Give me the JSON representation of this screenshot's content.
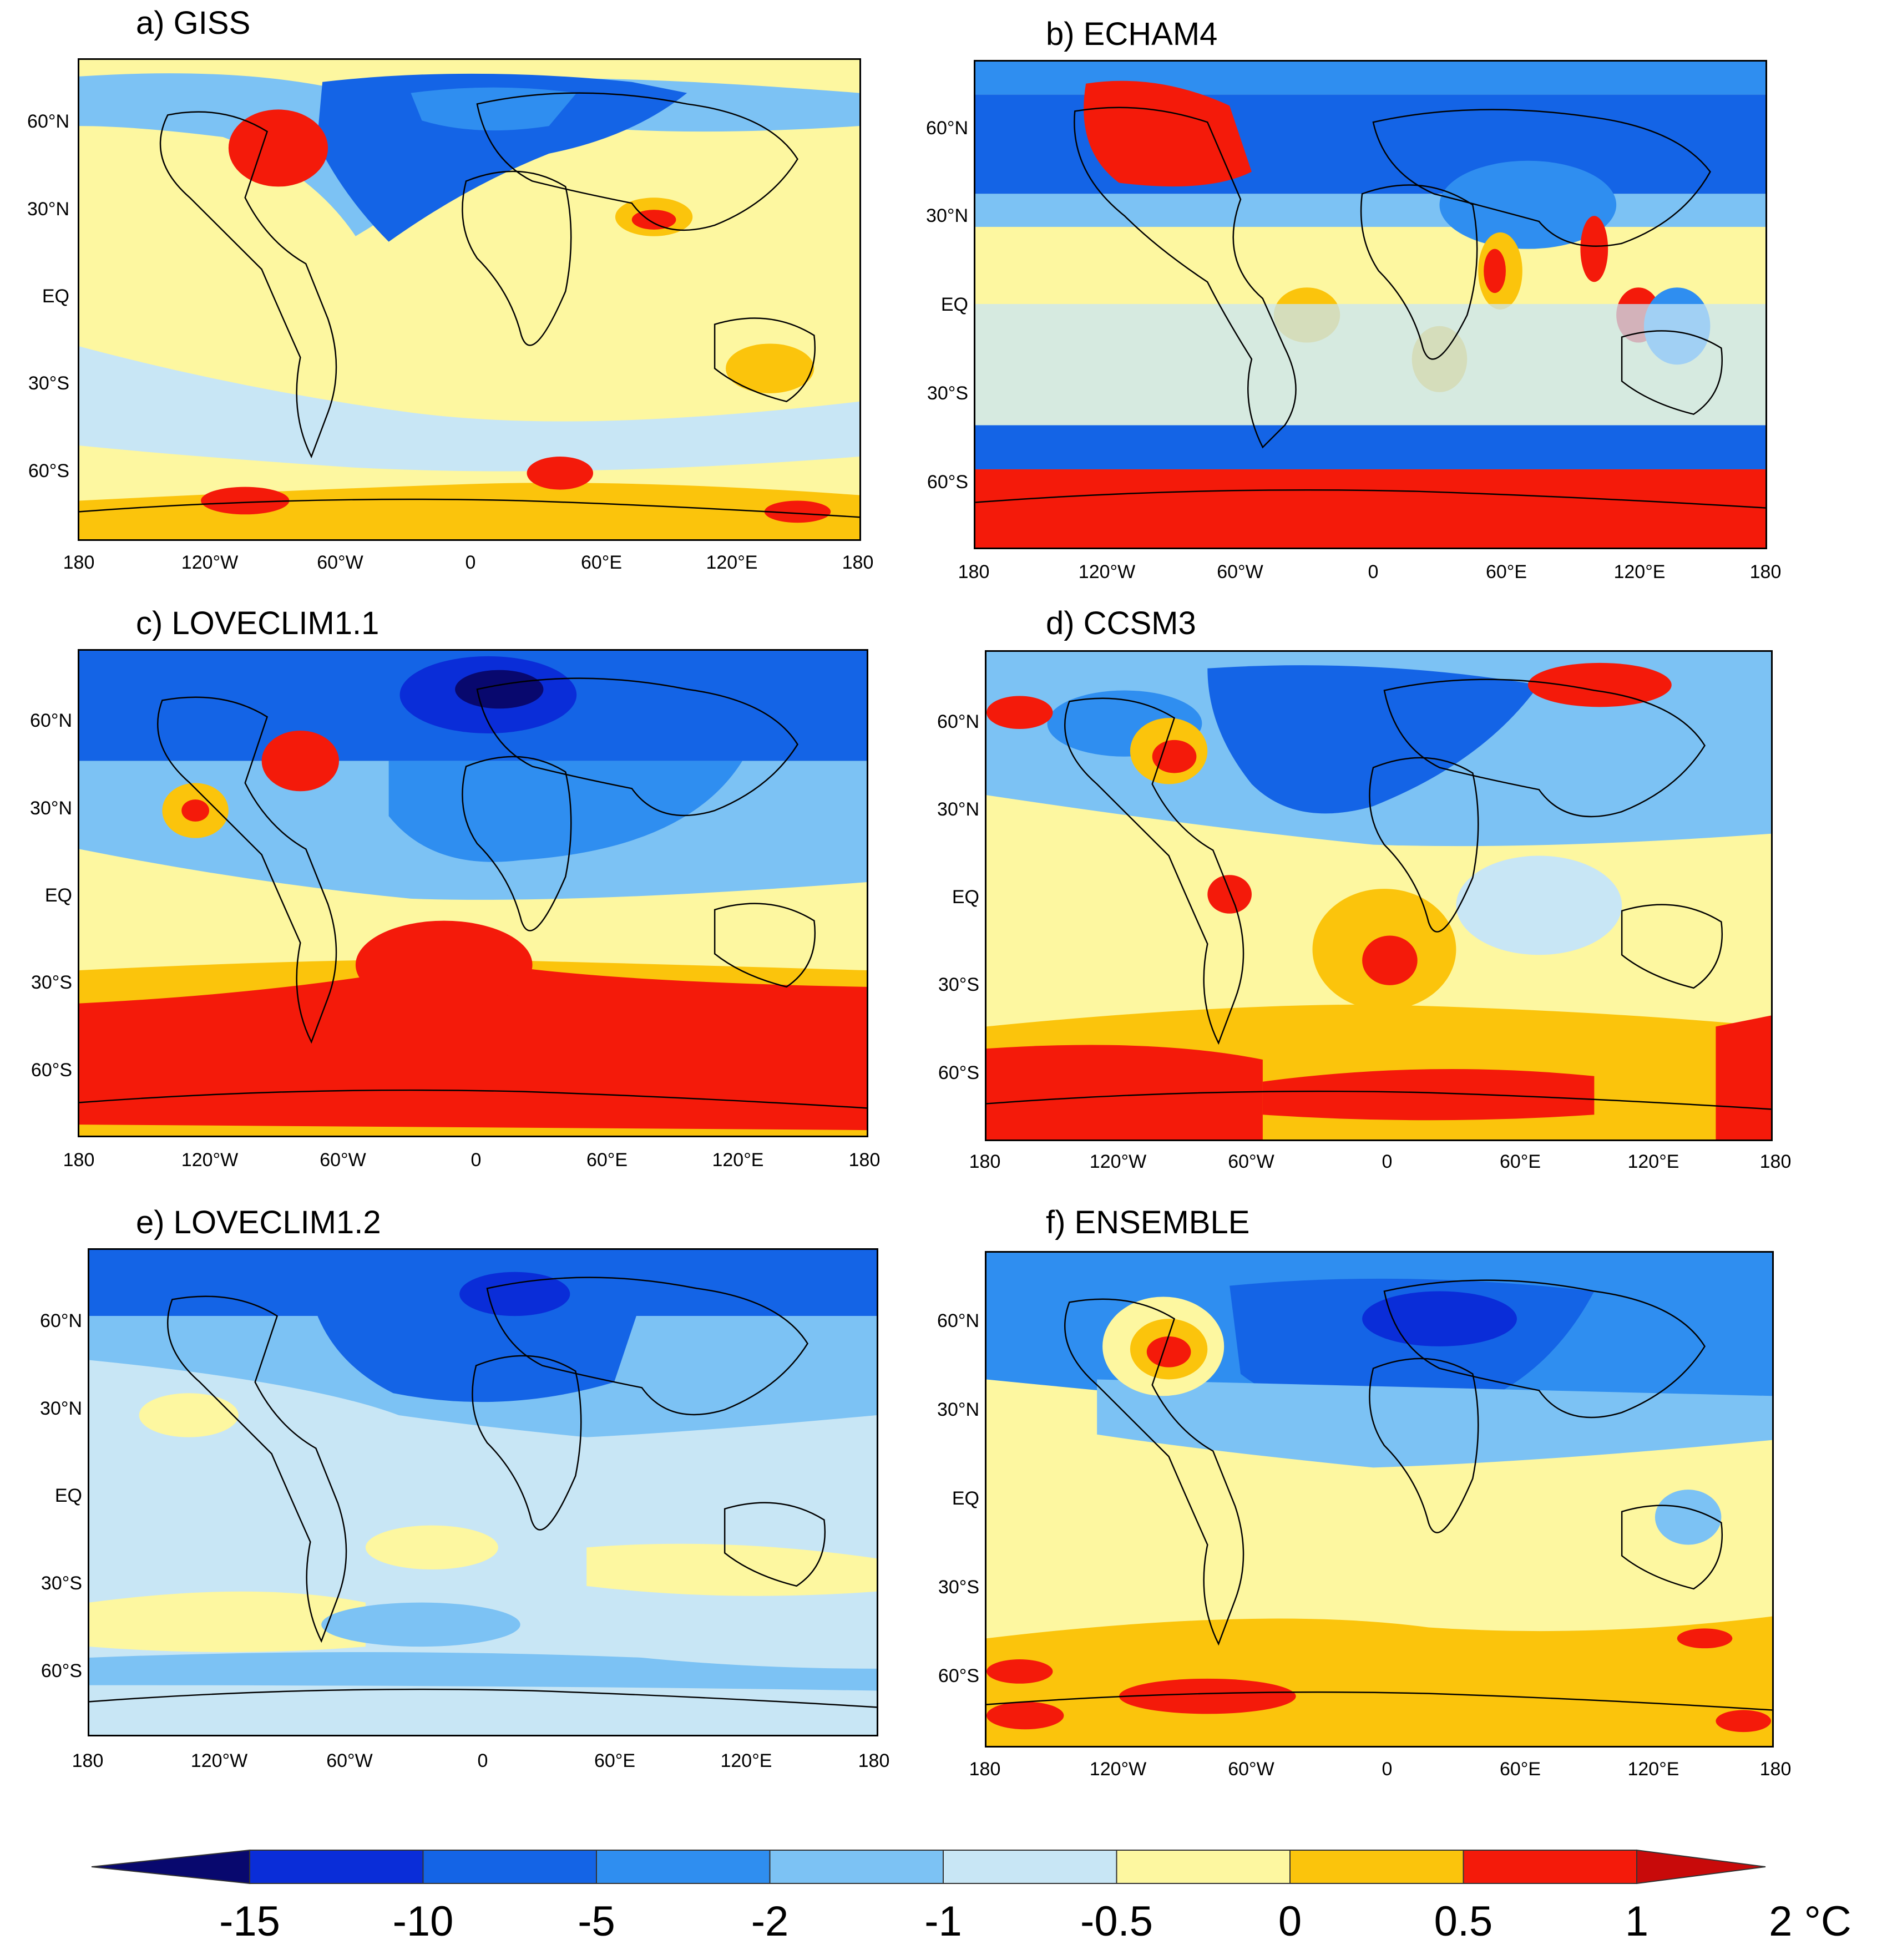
{
  "figure": {
    "lat_ticks": [
      "60°N",
      "30°N",
      "EQ",
      "30°S",
      "60°S"
    ],
    "lon_ticks": [
      "180",
      "120°W",
      "60°W",
      "0",
      "60°E",
      "120°E",
      "180"
    ]
  },
  "panels": [
    {
      "key": "a",
      "title": "a) GISS"
    },
    {
      "key": "b",
      "title": "b) ECHAM4"
    },
    {
      "key": "c",
      "title": "c) LOVECLIM1.1"
    },
    {
      "key": "d",
      "title": "d) CCSM3"
    },
    {
      "key": "e",
      "title": "e) LOVECLIM1.2"
    },
    {
      "key": "f",
      "title": "f) ENSEMBLE"
    }
  ],
  "colorbar": {
    "labels": [
      "-15",
      "-10",
      "-5",
      "-2",
      "-1",
      "-0.5",
      "0",
      "0.5",
      "1",
      "2 °C"
    ],
    "colors": [
      "#08086e",
      "#0a2dd8",
      "#1464e6",
      "#2f8ef0",
      "#7cc2f4",
      "#c8e6f5",
      "#fdf7a0",
      "#fbc40c",
      "#f41a0a",
      "#c80a0a"
    ],
    "unit": "°C"
  }
}
